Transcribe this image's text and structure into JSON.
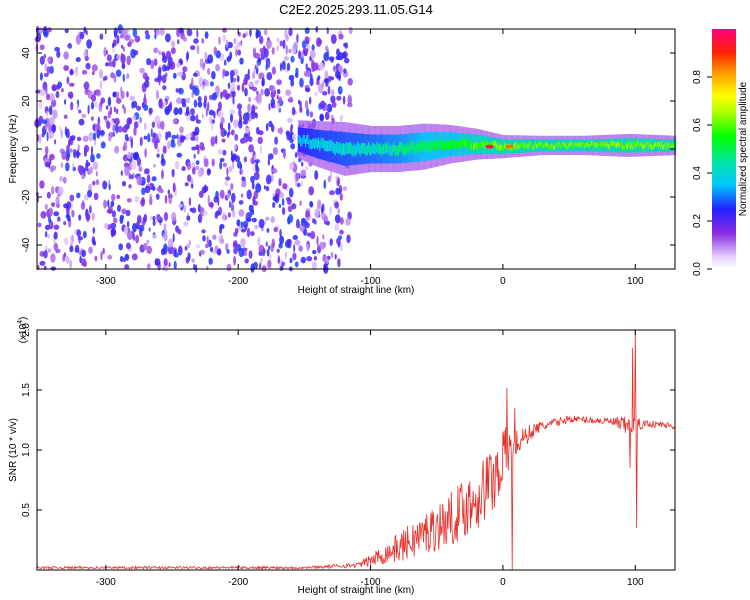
{
  "figure_title": "C2E2.2025.293.11.05.G14",
  "chart_data": [
    {
      "type": "heatmap",
      "name": "spectrogram",
      "xlabel": "Height of straight line (km)",
      "ylabel": "Frequency (Hz)",
      "xlim": [
        -352,
        130
      ],
      "ylim": [
        -50,
        50
      ],
      "xticks": [
        -300,
        -200,
        -100,
        0,
        100
      ],
      "xtick_labels": [
        "-300",
        "-200",
        "-100",
        "0",
        "100"
      ],
      "yticks": [
        -40,
        -20,
        0,
        20,
        40
      ],
      "ytick_labels": [
        "-40",
        "-20",
        "0",
        "20",
        "40"
      ],
      "noise_region": {
        "x_range": [
          -352,
          -115
        ],
        "y_range": [
          -50,
          50
        ],
        "level_range": [
          0.05,
          0.28
        ]
      },
      "signal_band": [
        {
          "x": -155,
          "center": 4,
          "halfwidth": 5,
          "level": 0.35
        },
        {
          "x": -140,
          "center": 2,
          "halfwidth": 6,
          "level": 0.38
        },
        {
          "x": -120,
          "center": 0,
          "halfwidth": 7,
          "level": 0.4
        },
        {
          "x": -100,
          "center": 0,
          "halfwidth": 6,
          "level": 0.42
        },
        {
          "x": -80,
          "center": 0,
          "halfwidth": 6,
          "level": 0.45
        },
        {
          "x": -60,
          "center": 1,
          "halfwidth": 6,
          "level": 0.5
        },
        {
          "x": -40,
          "center": 2,
          "halfwidth": 5,
          "level": 0.52
        },
        {
          "x": -20,
          "center": 2,
          "halfwidth": 4,
          "level": 0.58
        },
        {
          "x": 0,
          "center": 1,
          "halfwidth": 3,
          "level": 0.62
        },
        {
          "x": 30,
          "center": 1.5,
          "halfwidth": 2.5,
          "level": 0.6
        },
        {
          "x": 60,
          "center": 1.5,
          "halfwidth": 2.5,
          "level": 0.6
        },
        {
          "x": 95,
          "center": 1.5,
          "halfwidth": 3,
          "level": 0.62
        },
        {
          "x": 130,
          "center": 1.5,
          "halfwidth": 2.5,
          "level": 0.6
        }
      ],
      "peaks": [
        {
          "x": -10,
          "y": 1,
          "level": 0.95
        },
        {
          "x": 5,
          "y": 1,
          "level": 0.85
        }
      ],
      "colorbar": {
        "label": "Normalized spectral amplitude",
        "range": [
          0,
          1
        ],
        "ticks": [
          0.0,
          0.2,
          0.4,
          0.6,
          0.8
        ],
        "tick_labels": [
          "0.0",
          "0.2",
          "0.4",
          "0.6",
          "0.8"
        ]
      }
    },
    {
      "type": "line",
      "name": "snr",
      "xlabel": "Height of straight line (km)",
      "ylabel": "SNR (10 * v/v)",
      "scale_label": "(x10",
      "scale_exponent": "4",
      "scale_suffix": ")",
      "xlim": [
        -352,
        130
      ],
      "ylim": [
        0,
        2.0
      ],
      "xticks": [
        -300,
        -200,
        -100,
        0,
        100
      ],
      "xtick_labels": [
        "-300",
        "-200",
        "-100",
        "0",
        "100"
      ],
      "yticks": [
        0.5,
        1.0,
        1.5,
        2.0
      ],
      "ytick_labels": [
        "0.5",
        "1.0",
        "1.5",
        "2.0"
      ],
      "color": "#e8302a",
      "envelope": [
        {
          "x": -352,
          "y": 0.02,
          "amp": 0.01
        },
        {
          "x": -150,
          "y": 0.02,
          "amp": 0.01
        },
        {
          "x": -110,
          "y": 0.04,
          "amp": 0.02
        },
        {
          "x": -100,
          "y": 0.08,
          "amp": 0.05
        },
        {
          "x": -80,
          "y": 0.18,
          "amp": 0.12
        },
        {
          "x": -60,
          "y": 0.3,
          "amp": 0.18
        },
        {
          "x": -40,
          "y": 0.42,
          "amp": 0.22
        },
        {
          "x": -20,
          "y": 0.6,
          "amp": 0.28
        },
        {
          "x": -5,
          "y": 0.8,
          "amp": 0.3
        },
        {
          "x": 0,
          "y": 0.95,
          "amp": 0.25
        },
        {
          "x": 10,
          "y": 1.05,
          "amp": 0.12
        },
        {
          "x": 25,
          "y": 1.18,
          "amp": 0.05
        },
        {
          "x": 50,
          "y": 1.26,
          "amp": 0.03
        },
        {
          "x": 80,
          "y": 1.24,
          "amp": 0.03
        },
        {
          "x": 92,
          "y": 1.2,
          "amp": 0.08
        },
        {
          "x": 110,
          "y": 1.22,
          "amp": 0.03
        },
        {
          "x": 130,
          "y": 1.2,
          "amp": 0.03
        }
      ],
      "spikes": [
        {
          "x": 3,
          "y": 1.52
        },
        {
          "x": 7,
          "y": 0.0
        },
        {
          "x": 9,
          "y": 1.35
        },
        {
          "x": 98,
          "y": 1.85
        },
        {
          "x": 100,
          "y": 2.0
        },
        {
          "x": 101,
          "y": 0.35
        },
        {
          "x": 96,
          "y": 0.85
        }
      ]
    }
  ]
}
